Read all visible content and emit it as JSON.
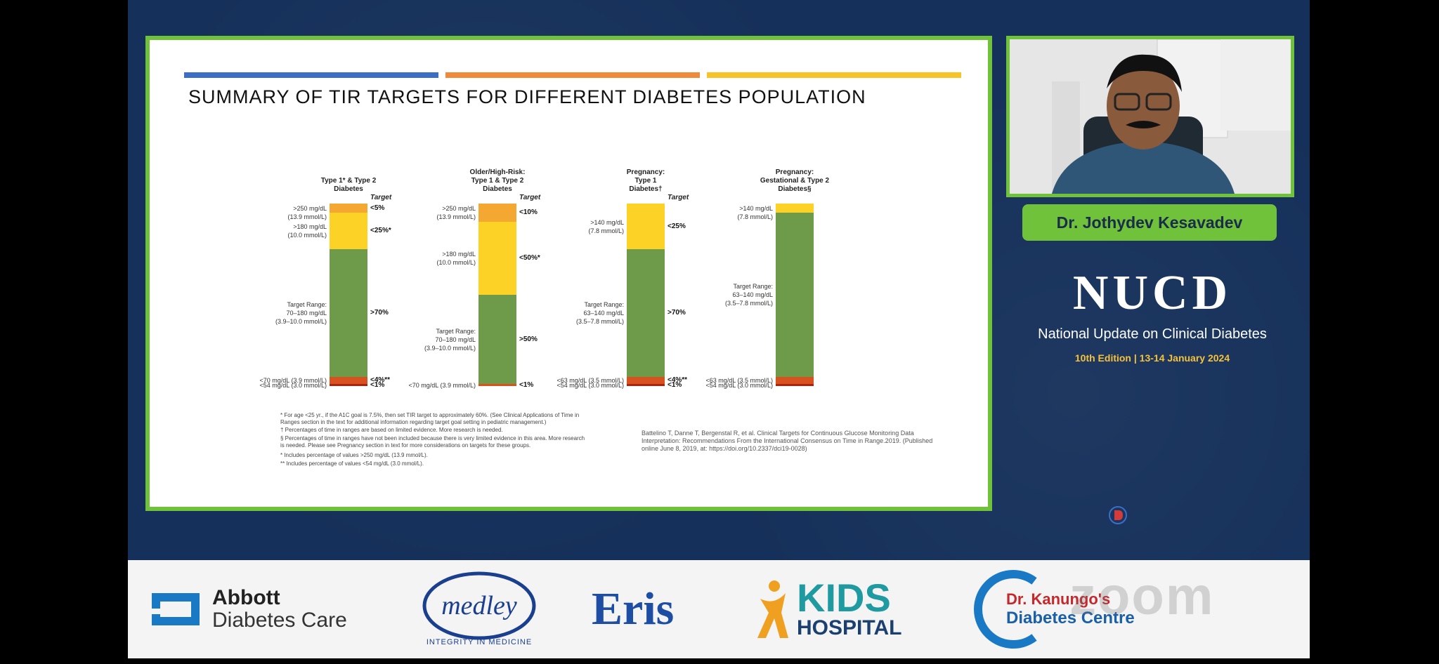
{
  "slide": {
    "title": "SUMMARY OF TIR TARGETS FOR DIFFERENT DIABETES POPULATION",
    "colors": {
      "very_high": "#f4a832",
      "high": "#fcd227",
      "in_range": "#6e9b4a",
      "low": "#d9511e",
      "very_low": "#a8260f"
    },
    "target_header": "Target",
    "columns": [
      {
        "title_lines": [
          "Type 1* & Type 2",
          "Diabetes"
        ],
        "segments": [
          {
            "label": ">250 mg/dL\n(13.9 mmol/L)",
            "target": "<5%",
            "color": "very_high",
            "pct": 5
          },
          {
            "label": ">180 mg/dL\n(10.0 mmol/L)",
            "target": "<25%*",
            "color": "high",
            "pct": 20
          },
          {
            "label": "Target Range:\n70–180 mg/dL\n(3.9–10.0 mmol/L)",
            "target": ">70%",
            "color": "in_range",
            "pct": 70
          },
          {
            "label": "<70 mg/dL (3.9 mmol/L)",
            "target": "<4%**",
            "color": "low",
            "pct": 4
          },
          {
            "label": "<54 mg/dL (3.0 mmol/L)",
            "target": "<1%",
            "color": "very_low",
            "pct": 1
          }
        ]
      },
      {
        "title_lines": [
          "Older/High-Risk:",
          "Type 1 & Type 2",
          "Diabetes"
        ],
        "segments": [
          {
            "label": ">250 mg/dL\n(13.9 mmol/L)",
            "target": "<10%",
            "color": "very_high",
            "pct": 10
          },
          {
            "label": ">180 mg/dL\n(10.0 mmol/L)",
            "target": "<50%*",
            "color": "high",
            "pct": 40
          },
          {
            "label": "Target Range:\n70–180 mg/dL\n(3.9–10.0 mmol/L)",
            "target": ">50%",
            "color": "in_range",
            "pct": 49
          },
          {
            "label": "<70 mg/dL (3.9 mmol/L)",
            "target": "<1%",
            "color": "low",
            "pct": 1
          }
        ]
      },
      {
        "title_lines": [
          "Pregnancy:",
          "Type 1",
          "Diabetes†"
        ],
        "segments": [
          {
            "label": ">140 mg/dL\n(7.8 mmol/L)",
            "target": "<25%",
            "color": "high",
            "pct": 25
          },
          {
            "label": "Target Range:\n63–140 mg/dL\n(3.5–7.8 mmol/L)",
            "target": ">70%",
            "color": "in_range",
            "pct": 70
          },
          {
            "label": "<63 mg/dL (3.5 mmol/L)",
            "target": "<4%**",
            "color": "low",
            "pct": 4
          },
          {
            "label": "<54 mg/dL (3.0 mmol/L)",
            "target": "<1%",
            "color": "very_low",
            "pct": 1
          }
        ]
      },
      {
        "title_lines": [
          "Pregnancy:",
          "Gestational & Type 2",
          "Diabetes§"
        ],
        "segments": [
          {
            "label": ">140 mg/dL\n(7.8 mmol/L)",
            "target": "",
            "color": "high",
            "pct": 5
          },
          {
            "label": "Target Range:\n63–140 mg/dL\n(3.5–7.8 mmol/L)",
            "target": "",
            "color": "in_range",
            "pct": 90
          },
          {
            "label": "<63 mg/dL (3.5 mmol/L)",
            "target": "",
            "color": "low",
            "pct": 4
          },
          {
            "label": "<54 mg/dL (3.0 mmol/L)",
            "target": "",
            "color": "very_low",
            "pct": 1
          }
        ]
      }
    ],
    "footnotes": [
      "* For age <25 yr., if the A1C goal is 7.5%, then set TIR target to approximately 60%. (See Clinical Applications of Time in Ranges section in the text for additional information regarding target goal setting in pediatric management.)",
      "† Percentages of time in ranges are based on limited evidence. More research is needed.",
      "§ Percentages of time in ranges have not been included because there is very limited evidence in this area. More research is needed. Please see Pregnancy section in text for more considerations on targets for these groups.",
      "* Includes percentage of values >250 mg/dL (13.9 mmol/L).",
      "** Includes percentage of values <54 mg/dL (3.0 mmol/L)."
    ],
    "citation": "Battelino T, Danne T, Bergenstal R, et al. Clinical Targets for Continuous Glucose Monitoring Data Interpretation: Recommendations From the International Consensus on Time in Range.2019. (Published online June 8, 2019, at: https://doi.org/10.2337/dci19-0028)"
  },
  "speaker": {
    "name": "Dr. Jothydev Kesavadev"
  },
  "event": {
    "name": "NUCD",
    "subtitle": "National Update on Clinical Diabetes",
    "edition": "10th Edition | 13-14 January 2024"
  },
  "sponsors": {
    "abbott_line1": "Abbott",
    "abbott_line2": "Diabetes Care",
    "medley_name": "medley",
    "medley_tagline": "INTEGRITY IN MEDICINE",
    "eris": "Eris",
    "kids_line1": "KIDS",
    "kids_line2": "HOSPITAL",
    "kanungo_line1": "Dr. Kanungo's",
    "kanungo_line2": "Diabetes Centre",
    "zoom": "zoom"
  }
}
